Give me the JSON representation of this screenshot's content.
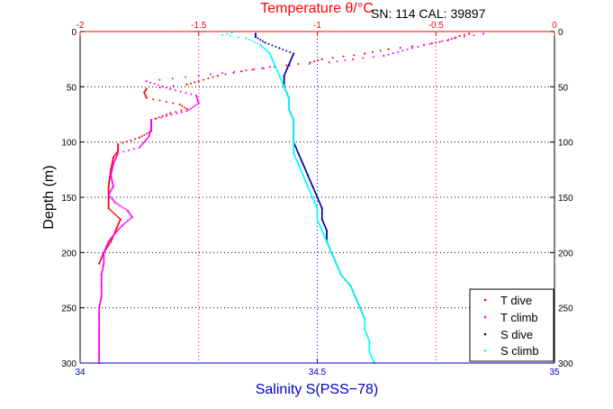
{
  "chart_data": {
    "type": "scatter",
    "top_axis": {
      "label": "Temperature θ/°C",
      "range": [
        -2,
        0
      ],
      "ticks": [
        -2,
        -1.5,
        -1,
        -0.5,
        0
      ],
      "tick_labels": [
        "-2",
        "-1.5",
        "-1",
        "-0.5",
        "0"
      ],
      "color": "#ff0000"
    },
    "bottom_axis": {
      "label": "Salinity S(PSS−78)",
      "range": [
        34,
        35
      ],
      "ticks": [
        34,
        34.5,
        35
      ],
      "tick_labels": [
        "34",
        "34.5",
        "35"
      ],
      "color": "#0000cc"
    },
    "left_axis": {
      "label": "Depth (m)",
      "range": [
        0,
        300
      ],
      "ticks": [
        0,
        50,
        100,
        150,
        200,
        250,
        300
      ],
      "tick_labels": [
        "0",
        "50",
        "100",
        "150",
        "200",
        "250",
        "300"
      ],
      "direction": "down"
    },
    "right_axis": {
      "tick_labels": [
        "0",
        "50",
        "100",
        "150",
        "200",
        "250",
        "300"
      ]
    },
    "annotation": "SN: 114  CAL: 39897",
    "grid": true,
    "legend": {
      "placement": "bottom-right",
      "entries": [
        {
          "label": "T dive",
          "color": "#ff0000"
        },
        {
          "label": "T climb",
          "color": "#ff00ff"
        },
        {
          "label": "S dive",
          "color": "#0000aa"
        },
        {
          "label": "S climb",
          "color": "#00ffff"
        }
      ]
    },
    "series": [
      {
        "name": "T dive",
        "axis": "temperature",
        "color": "#ff0000",
        "points": [
          [
            -0.36,
            2
          ],
          [
            -0.4,
            4
          ],
          [
            -0.45,
            8
          ],
          [
            -0.55,
            12
          ],
          [
            -0.7,
            16
          ],
          [
            -0.8,
            20
          ],
          [
            -0.98,
            25
          ],
          [
            -1.03,
            28
          ],
          [
            -1.18,
            32
          ],
          [
            -1.32,
            36
          ],
          [
            -1.42,
            40
          ],
          [
            -1.5,
            45
          ],
          [
            -1.55,
            48
          ],
          [
            -1.72,
            52
          ],
          [
            -1.73,
            55
          ],
          [
            -1.72,
            60
          ],
          [
            -1.58,
            66
          ],
          [
            -1.55,
            70
          ],
          [
            -1.62,
            74
          ],
          [
            -1.7,
            80
          ],
          [
            -1.7,
            86
          ],
          [
            -1.7,
            90
          ],
          [
            -1.75,
            96
          ],
          [
            -1.84,
            102
          ],
          [
            -1.84,
            108
          ],
          [
            -1.86,
            114
          ],
          [
            -1.87,
            125
          ],
          [
            -1.88,
            140
          ],
          [
            -1.88,
            160
          ],
          [
            -1.83,
            170
          ],
          [
            -1.85,
            180
          ],
          [
            -1.87,
            190
          ],
          [
            -1.9,
            200
          ],
          [
            -1.92,
            210
          ]
        ]
      },
      {
        "name": "T climb",
        "axis": "temperature",
        "color": "#ff00ff",
        "points": [
          [
            -1.92,
            300
          ],
          [
            -1.92,
            290
          ],
          [
            -1.92,
            280
          ],
          [
            -1.92,
            270
          ],
          [
            -1.92,
            260
          ],
          [
            -1.92,
            250
          ],
          [
            -1.91,
            240
          ],
          [
            -1.91,
            230
          ],
          [
            -1.91,
            220
          ],
          [
            -1.9,
            210
          ],
          [
            -1.9,
            200
          ],
          [
            -1.89,
            195
          ],
          [
            -1.88,
            190
          ],
          [
            -1.85,
            182
          ],
          [
            -1.82,
            175
          ],
          [
            -1.78,
            168
          ],
          [
            -1.8,
            162
          ],
          [
            -1.85,
            155
          ],
          [
            -1.88,
            148
          ],
          [
            -1.86,
            140
          ],
          [
            -1.87,
            130
          ],
          [
            -1.86,
            120
          ],
          [
            -1.84,
            110
          ],
          [
            -1.75,
            105
          ],
          [
            -1.71,
            95
          ],
          [
            -1.7,
            88
          ],
          [
            -1.7,
            80
          ],
          [
            -1.55,
            72
          ],
          [
            -1.5,
            65
          ],
          [
            -1.51,
            58
          ],
          [
            -1.62,
            52
          ],
          [
            -1.72,
            45
          ],
          [
            -1.5,
            40
          ],
          [
            -1.3,
            35
          ],
          [
            -1.2,
            32
          ],
          [
            -0.95,
            28
          ],
          [
            -0.85,
            25
          ],
          [
            -0.72,
            22
          ],
          [
            -0.6,
            15
          ],
          [
            -0.5,
            10
          ],
          [
            -0.42,
            6
          ],
          [
            -0.3,
            2
          ]
        ]
      },
      {
        "name": "S dive",
        "axis": "salinity",
        "color": "#0000aa",
        "points": [
          [
            34.37,
            2
          ],
          [
            34.37,
            5
          ],
          [
            34.39,
            10
          ],
          [
            34.42,
            15
          ],
          [
            34.45,
            20
          ],
          [
            34.44,
            30
          ],
          [
            34.43,
            40
          ],
          [
            34.43,
            50
          ],
          [
            34.44,
            60
          ],
          [
            34.44,
            70
          ],
          [
            34.45,
            80
          ],
          [
            34.45,
            90
          ],
          [
            34.45,
            100
          ],
          [
            34.46,
            110
          ],
          [
            34.47,
            120
          ],
          [
            34.48,
            130
          ],
          [
            34.49,
            140
          ],
          [
            34.5,
            150
          ],
          [
            34.51,
            160
          ],
          [
            34.51,
            170
          ],
          [
            34.52,
            180
          ],
          [
            34.52,
            190
          ],
          [
            34.53,
            200
          ],
          [
            34.54,
            210
          ],
          [
            34.55,
            220
          ],
          [
            34.57,
            230
          ],
          [
            34.58,
            240
          ],
          [
            34.59,
            250
          ],
          [
            34.6,
            260
          ]
        ]
      },
      {
        "name": "S climb",
        "axis": "salinity",
        "color": "#00ffff",
        "points": [
          [
            34.62,
            300
          ],
          [
            34.61,
            290
          ],
          [
            34.61,
            280
          ],
          [
            34.6,
            270
          ],
          [
            34.6,
            260
          ],
          [
            34.59,
            250
          ],
          [
            34.58,
            240
          ],
          [
            34.57,
            230
          ],
          [
            34.55,
            220
          ],
          [
            34.54,
            210
          ],
          [
            34.53,
            200
          ],
          [
            34.52,
            190
          ],
          [
            34.51,
            180
          ],
          [
            34.5,
            170
          ],
          [
            34.5,
            160
          ],
          [
            34.49,
            150
          ],
          [
            34.48,
            140
          ],
          [
            34.47,
            130
          ],
          [
            34.46,
            120
          ],
          [
            34.45,
            110
          ],
          [
            34.45,
            100
          ],
          [
            34.45,
            90
          ],
          [
            34.45,
            80
          ],
          [
            34.44,
            70
          ],
          [
            34.44,
            60
          ],
          [
            34.43,
            50
          ],
          [
            34.42,
            40
          ],
          [
            34.41,
            30
          ],
          [
            34.4,
            20
          ],
          [
            34.38,
            12
          ],
          [
            34.35,
            6
          ],
          [
            34.3,
            3
          ],
          [
            34.32,
            1
          ]
        ]
      }
    ]
  }
}
